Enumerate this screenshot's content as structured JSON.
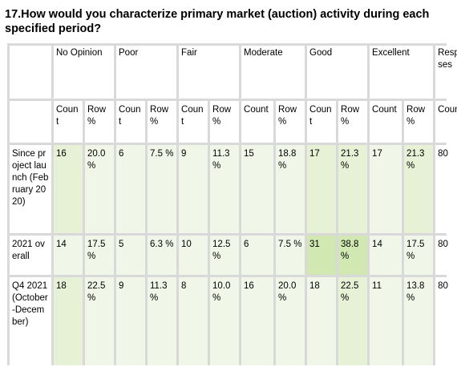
{
  "question": "17.How would you characterize primary market (auction) activity during each specified period?",
  "table": {
    "headers": [
      "No Opinion",
      "Poor",
      "Fair",
      "Moderate",
      "Good",
      "Excellent",
      "Responses"
    ],
    "subheaders": [
      "Count",
      "Row %",
      "Count",
      "Row %",
      "Count",
      "Row %",
      "Count",
      "Row %",
      "Count",
      "Row %",
      "Count",
      "Row %",
      "Count"
    ],
    "rows": [
      {
        "label": "Since project launch (February 2020)",
        "cells": [
          "16",
          "20.0 %",
          "6",
          "7.5 %",
          "9",
          "11.3 %",
          "15",
          "18.8 %",
          "17",
          "21.3 %",
          "17",
          "21.3 %",
          "80"
        ]
      },
      {
        "label": "2021 overall",
        "cells": [
          "14",
          "17.5 %",
          "5",
          "6.3 %",
          "10",
          "12.5 %",
          "6",
          "7.5 %",
          "31",
          "38.8 %",
          "14",
          "17.5 %",
          "80"
        ]
      },
      {
        "label": "Q4 2021 (October-December)",
        "cells": [
          "18",
          "22.5 %",
          "9",
          "11.3 %",
          "8",
          "10.0 %",
          "16",
          "20.0 %",
          "18",
          "22.5 %",
          "11",
          "13.8 %",
          "80"
        ]
      }
    ]
  },
  "colors": {
    "frame": "#d9d9d9",
    "shade_light": "#f1f7e8",
    "shade_medium": "#e6f1d6",
    "shade_strong": "#d2e8b2"
  }
}
